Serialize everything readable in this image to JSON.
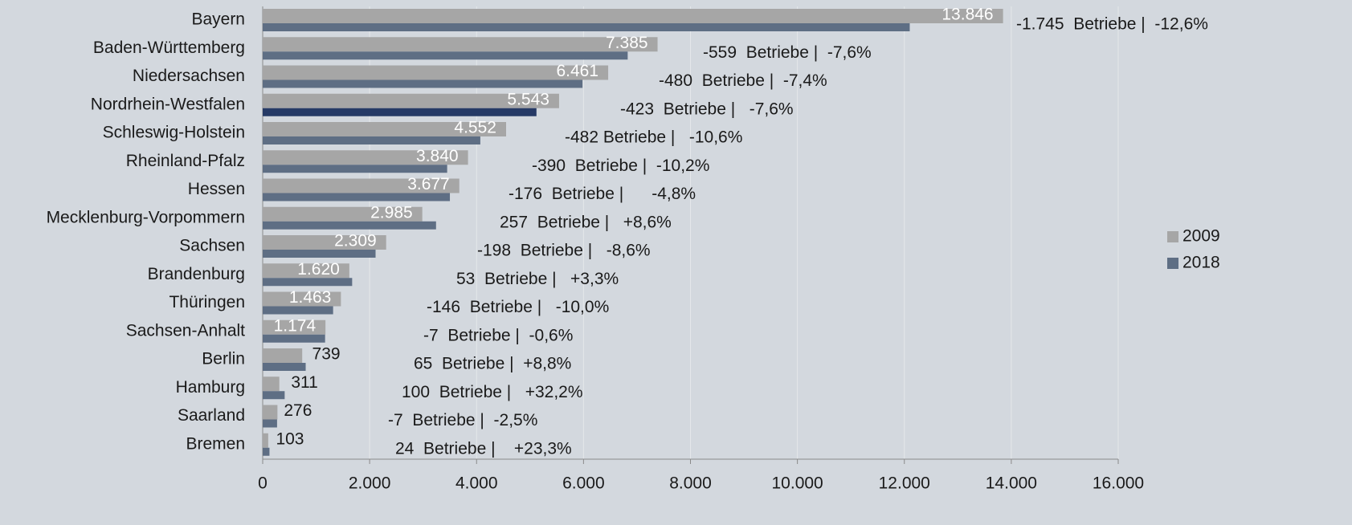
{
  "chart_data": {
    "type": "bar",
    "orientation": "horizontal",
    "categories": [
      "Bayern",
      "Baden-Württemberg",
      "Niedersachsen",
      "Nordrhein-Westfalen",
      "Schleswig-Holstein",
      "Rheinland-Pfalz",
      "Hessen",
      "Mecklenburg-Vorpommern",
      "Sachsen",
      "Brandenburg",
      "Thüringen",
      "Sachsen-Anhalt",
      "Berlin",
      "Hamburg",
      "Saarland",
      "Bremen"
    ],
    "series": [
      {
        "name": "2009",
        "color": "#a6a6a6",
        "values": [
          13846,
          7385,
          6461,
          5543,
          4552,
          3840,
          3677,
          2985,
          2309,
          1620,
          1463,
          1174,
          739,
          311,
          276,
          103
        ],
        "value_labels": [
          "13.846",
          "7.385",
          "6.461",
          "5.543",
          "4.552",
          "3.840",
          "3.677",
          "2.985",
          "2.309",
          "1.620",
          "1.463",
          "1.174",
          "739",
          "311",
          "276",
          "103"
        ]
      },
      {
        "name": "2018",
        "color": "#5e6e84",
        "colors": [
          "#5e6e84",
          "#5e6e84",
          "#5e6e84",
          "#263a66",
          "#5e6e84",
          "#5e6e84",
          "#5e6e84",
          "#5e6e84",
          "#5e6e84",
          "#5e6e84",
          "#5e6e84",
          "#5e6e84",
          "#5e6e84",
          "#5e6e84",
          "#5e6e84",
          "#5e6e84"
        ],
        "values": [
          12101,
          6826,
          5981,
          5120,
          4070,
          3450,
          3501,
          3242,
          2111,
          1673,
          1317,
          1167,
          804,
          411,
          269,
          127
        ]
      }
    ],
    "annotations": [
      "-1.745  Betriebe |  -12,6%",
      "-559  Betriebe |  -7,6%",
      "-480  Betriebe |  -7,4%",
      "-423  Betriebe |   -7,6%",
      "-482 Betriebe |   -10,6%",
      "-390  Betriebe |  -10,2%",
      "-176  Betriebe |      -4,8%",
      "257  Betriebe |   +8,6%",
      "-198  Betriebe |   -8,6%",
      "53  Betriebe |   +3,3%",
      "-146  Betriebe |   -10,0%",
      "-7  Betriebe |  -0,6%",
      "65  Betriebe |  +8,8%",
      "100  Betriebe |   +32,2%",
      "-7  Betriebe |  -2,5%",
      "24  Betriebe |    +23,3%"
    ],
    "xlim": [
      0,
      16000
    ],
    "xticks": [
      0,
      {
        "value": 2000,
        "label": "2.000"
      },
      {
        "value": 4000,
        "label": "4.000"
      },
      {
        "value": 6000,
        "label": "6.000"
      },
      {
        "value": 8000,
        "label": "8.000"
      },
      {
        "value": 10000,
        "label": "10.000"
      },
      {
        "value": 12000,
        "label": "12.000"
      },
      {
        "value": 14000,
        "label": "14.000"
      },
      {
        "value": 16000,
        "label": "16.000"
      }
    ],
    "grid": true,
    "legend": "right"
  }
}
